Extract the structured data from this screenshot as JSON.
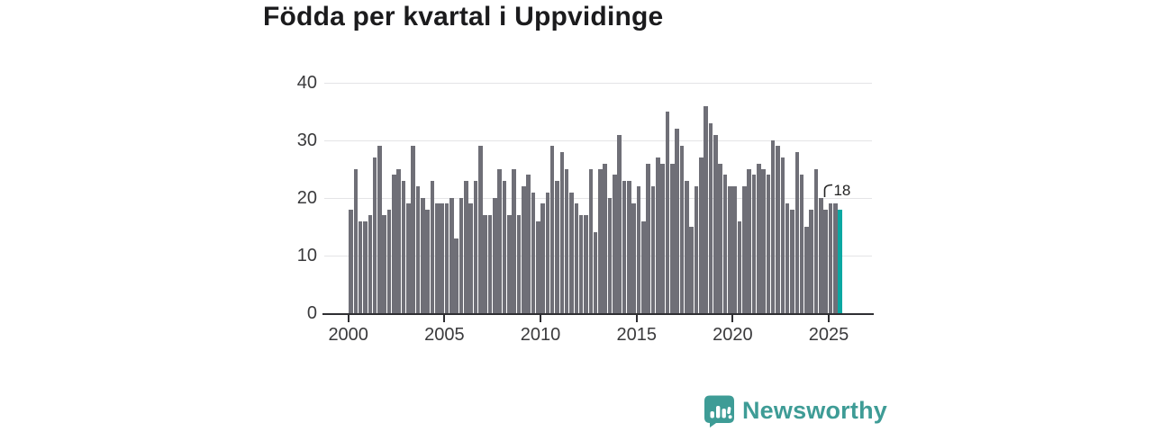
{
  "title": "Födda per kvartal i Uppvidinge",
  "annotation": {
    "label": "18"
  },
  "logo": {
    "text": "Newsworthy"
  },
  "colors": {
    "bar": "#6f6f77",
    "highlight": "#0aa8a2",
    "grid": "#e4e4e6",
    "axis": "#2f2f33",
    "tick_text": "#3a3a3c",
    "title_text": "#1b1b1d",
    "annotation_text": "#222222",
    "logo_teal": "#3e9c96"
  },
  "chart_data": {
    "type": "bar",
    "title": "Födda per kvartal i Uppvidinge",
    "xlabel": "",
    "ylabel": "",
    "ylim": [
      0,
      40
    ],
    "grid": true,
    "start_quarter": "2000Q1",
    "end_quarter": "2025Q3",
    "x_tick_labels": [
      "2000",
      "2005",
      "2010",
      "2015",
      "2020",
      "2025"
    ],
    "y_tick_labels": [
      "0",
      "10",
      "20",
      "30",
      "40"
    ],
    "series": [
      {
        "name": "Födda per kvartal",
        "values": [
          18,
          25,
          16,
          16,
          17,
          27,
          29,
          17,
          18,
          24,
          25,
          23,
          19,
          29,
          22,
          20,
          18,
          23,
          19,
          19,
          19,
          20,
          13,
          20,
          23,
          19,
          23,
          29,
          17,
          17,
          20,
          25,
          23,
          17,
          25,
          17,
          22,
          24,
          21,
          16,
          19,
          21,
          29,
          23,
          28,
          25,
          21,
          19,
          17,
          17,
          25,
          14,
          25,
          26,
          20,
          24,
          31,
          23,
          23,
          19,
          22,
          16,
          26,
          22,
          27,
          26,
          35,
          26,
          32,
          29,
          23,
          15,
          22,
          27,
          36,
          33,
          31,
          26,
          24,
          22,
          22,
          16,
          22,
          25,
          24,
          26,
          25,
          24,
          30,
          29,
          27,
          19,
          18,
          28,
          24,
          15,
          18,
          25,
          20,
          18,
          19,
          19,
          18
        ]
      }
    ],
    "highlight": {
      "quarter": "2025Q3",
      "value": 18,
      "label": "18",
      "position": "last"
    }
  }
}
